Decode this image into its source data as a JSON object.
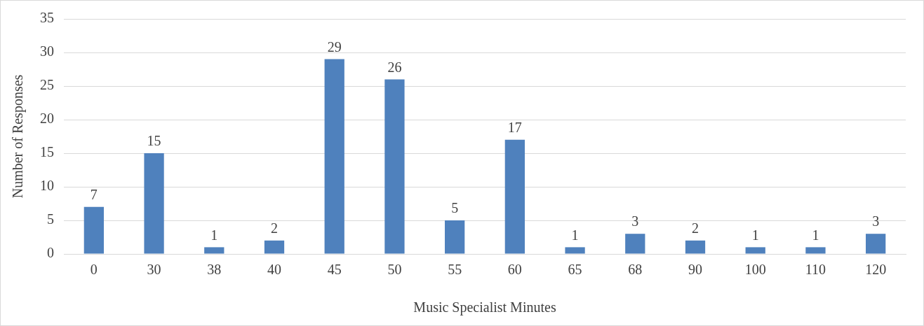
{
  "chart_data": {
    "type": "bar",
    "xlabel": "Music Specialist Minutes",
    "ylabel": "Number of Responses",
    "categories": [
      "0",
      "30",
      "38",
      "40",
      "45",
      "50",
      "55",
      "60",
      "65",
      "68",
      "90",
      "100",
      "110",
      "120"
    ],
    "values": [
      7,
      15,
      1,
      2,
      29,
      26,
      5,
      17,
      1,
      3,
      2,
      1,
      1,
      3
    ],
    "color": "#4f81bd",
    "ylim": [
      0,
      35
    ],
    "yticks": [
      0,
      5,
      10,
      15,
      20,
      25,
      30,
      35
    ],
    "grid": "y",
    "data_labels": true
  }
}
